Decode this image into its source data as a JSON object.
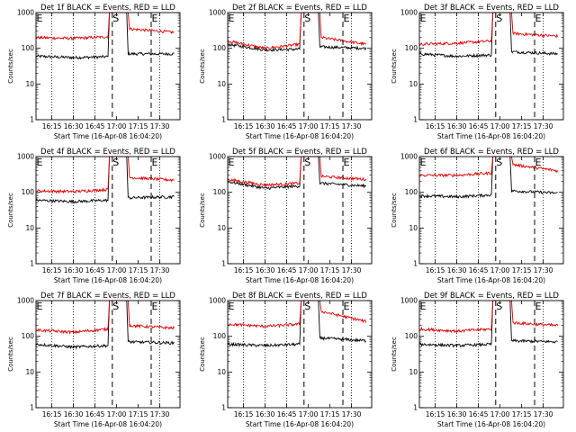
{
  "chart_data": [
    {
      "type": "line",
      "title": "Det 1f BLACK = Events, RED = LLD",
      "xlabel": "Start Time (16-Apr-08 16:04:20)",
      "ylabel": "Counts/sec",
      "y_scale": "log",
      "ylim": [
        1,
        1000
      ],
      "x_ticks": [
        "16:15",
        "16:30",
        "16:45",
        "17:00",
        "17:15",
        "17:30"
      ],
      "y_ticks": [
        "1",
        "10",
        "100",
        "1000"
      ],
      "markers": [
        {
          "label": "E",
          "time": "16:04"
        },
        {
          "label": "S",
          "time": "16:57"
        },
        {
          "label": "E",
          "time": "17:24"
        }
      ],
      "series": [
        {
          "color": "black",
          "points": [
            [
              "16:04",
              60
            ],
            [
              "16:30",
              55
            ],
            [
              "16:54",
              58
            ],
            [
              "16:55",
              1000
            ],
            [
              "17:07",
              1000
            ],
            [
              "17:08",
              70
            ],
            [
              "17:40",
              70
            ]
          ]
        },
        {
          "color": "red",
          "points": [
            [
              "16:04",
              200
            ],
            [
              "16:30",
              190
            ],
            [
              "16:54",
              210
            ],
            [
              "16:55",
              1000
            ],
            [
              "17:08",
              1000
            ],
            [
              "17:09",
              350
            ],
            [
              "17:40",
              280
            ]
          ]
        }
      ]
    },
    {
      "type": "line",
      "title": "Det 2f BLACK = Events, RED = LLD",
      "xlabel": "Start Time (16-Apr-08 16:04:20)",
      "ylabel": "Counts/sec",
      "y_scale": "log",
      "ylim": [
        1,
        1000
      ],
      "x_ticks": [
        "16:15",
        "16:30",
        "16:45",
        "17:00",
        "17:15",
        "17:30"
      ],
      "y_ticks": [
        "1",
        "10",
        "100",
        "1000"
      ],
      "markers": [
        {
          "label": "E",
          "time": "16:04"
        },
        {
          "label": "S",
          "time": "16:57"
        },
        {
          "label": "E",
          "time": "17:24"
        }
      ],
      "series": [
        {
          "color": "black",
          "points": [
            [
              "16:04",
              130
            ],
            [
              "16:30",
              90
            ],
            [
              "16:54",
              95
            ],
            [
              "16:55",
              1000
            ],
            [
              "17:07",
              1000
            ],
            [
              "17:08",
              110
            ],
            [
              "17:40",
              100
            ]
          ]
        },
        {
          "color": "red",
          "points": [
            [
              "16:04",
              160
            ],
            [
              "16:30",
              100
            ],
            [
              "16:54",
              130
            ],
            [
              "16:55",
              1000
            ],
            [
              "17:08",
              1000
            ],
            [
              "17:09",
              200
            ],
            [
              "17:40",
              130
            ]
          ]
        }
      ]
    },
    {
      "type": "line",
      "title": "Det 3f BLACK = Events, RED = LLD",
      "xlabel": "Start Time (16-Apr-08 16:04:20)",
      "ylabel": "Counts/sec",
      "y_scale": "log",
      "ylim": [
        1,
        1000
      ],
      "x_ticks": [
        "16:15",
        "16:30",
        "16:45",
        "17:00",
        "17:15",
        "17:30"
      ],
      "y_ticks": [
        "1",
        "10",
        "100",
        "1000"
      ],
      "markers": [
        {
          "label": "E",
          "time": "16:04"
        },
        {
          "label": "S",
          "time": "16:57"
        },
        {
          "label": "E",
          "time": "17:24"
        }
      ],
      "series": [
        {
          "color": "black",
          "points": [
            [
              "16:04",
              70
            ],
            [
              "16:30",
              60
            ],
            [
              "16:54",
              65
            ],
            [
              "16:55",
              1000
            ],
            [
              "17:07",
              1000
            ],
            [
              "17:08",
              80
            ],
            [
              "17:40",
              70
            ]
          ]
        },
        {
          "color": "red",
          "points": [
            [
              "16:04",
              130
            ],
            [
              "16:30",
              140
            ],
            [
              "16:54",
              160
            ],
            [
              "16:55",
              1000
            ],
            [
              "17:08",
              1000
            ],
            [
              "17:09",
              260
            ],
            [
              "17:40",
              220
            ]
          ]
        }
      ]
    },
    {
      "type": "line",
      "title": "Det 4f BLACK = Events, RED = LLD",
      "xlabel": "Start Time (16-Apr-08 16:04:20)",
      "ylabel": "Counts/sec",
      "y_scale": "log",
      "ylim": [
        1,
        1000
      ],
      "x_ticks": [
        "16:15",
        "16:30",
        "16:45",
        "17:00",
        "17:15",
        "17:30"
      ],
      "y_ticks": [
        "1",
        "10",
        "100",
        "1000"
      ],
      "markers": [
        {
          "label": "E",
          "time": "16:04"
        },
        {
          "label": "S",
          "time": "16:57"
        },
        {
          "label": "E",
          "time": "17:24"
        }
      ],
      "series": [
        {
          "color": "black",
          "points": [
            [
              "16:04",
              60
            ],
            [
              "16:30",
              55
            ],
            [
              "16:54",
              60
            ],
            [
              "16:55",
              1000
            ],
            [
              "17:07",
              1000
            ],
            [
              "17:08",
              70
            ],
            [
              "17:40",
              75
            ]
          ]
        },
        {
          "color": "red",
          "points": [
            [
              "16:04",
              110
            ],
            [
              "16:30",
              105
            ],
            [
              "16:54",
              120
            ],
            [
              "16:55",
              1000
            ],
            [
              "17:08",
              1000
            ],
            [
              "17:09",
              260
            ],
            [
              "17:40",
              220
            ]
          ]
        }
      ]
    },
    {
      "type": "line",
      "title": "Det 5f BLACK = Events, RED = LLD",
      "xlabel": "Start Time (16-Apr-08 16:04:20)",
      "ylabel": "Counts/sec",
      "y_scale": "log",
      "ylim": [
        1,
        1000
      ],
      "x_ticks": [
        "16:15",
        "16:30",
        "16:45",
        "17:00",
        "17:15",
        "17:30"
      ],
      "y_ticks": [
        "1",
        "10",
        "100",
        "1000"
      ],
      "markers": [
        {
          "label": "E",
          "time": "16:04"
        },
        {
          "label": "S",
          "time": "16:57"
        },
        {
          "label": "E",
          "time": "17:24"
        }
      ],
      "series": [
        {
          "color": "black",
          "points": [
            [
              "16:04",
              200
            ],
            [
              "16:30",
              130
            ],
            [
              "16:54",
              150
            ],
            [
              "16:55",
              1000
            ],
            [
              "17:07",
              1000
            ],
            [
              "17:08",
              180
            ],
            [
              "17:40",
              150
            ]
          ]
        },
        {
          "color": "red",
          "points": [
            [
              "16:04",
              230
            ],
            [
              "16:30",
              160
            ],
            [
              "16:54",
              180
            ],
            [
              "16:55",
              1000
            ],
            [
              "17:08",
              1000
            ],
            [
              "17:09",
              280
            ],
            [
              "17:40",
              230
            ]
          ]
        }
      ]
    },
    {
      "type": "line",
      "title": "Det 6f BLACK = Events, RED = LLD",
      "xlabel": "Start Time (16-Apr-08 16:04:20)",
      "ylabel": "Counts/sec",
      "y_scale": "log",
      "ylim": [
        1,
        1000
      ],
      "x_ticks": [
        "16:15",
        "16:30",
        "16:45",
        "17:00",
        "17:15",
        "17:30"
      ],
      "y_ticks": [
        "1",
        "10",
        "100",
        "1000"
      ],
      "markers": [
        {
          "label": "E",
          "time": "16:04"
        },
        {
          "label": "S",
          "time": "16:57"
        },
        {
          "label": "E",
          "time": "17:24"
        }
      ],
      "series": [
        {
          "color": "black",
          "points": [
            [
              "16:04",
              80
            ],
            [
              "16:30",
              75
            ],
            [
              "16:54",
              85
            ],
            [
              "16:55",
              1000
            ],
            [
              "17:07",
              1000
            ],
            [
              "17:08",
              110
            ],
            [
              "17:40",
              95
            ]
          ]
        },
        {
          "color": "red",
          "points": [
            [
              "16:04",
              300
            ],
            [
              "16:30",
              300
            ],
            [
              "16:54",
              350
            ],
            [
              "16:55",
              1000
            ],
            [
              "17:08",
              1000
            ],
            [
              "17:09",
              600
            ],
            [
              "17:40",
              400
            ]
          ]
        }
      ]
    },
    {
      "type": "line",
      "title": "Det 7f BLACK = Events, RED = LLD",
      "xlabel": "Start Time (16-Apr-08 16:04:20)",
      "ylabel": "Counts/sec",
      "y_scale": "log",
      "ylim": [
        1,
        1000
      ],
      "x_ticks": [
        "16:15",
        "16:30",
        "16:45",
        "17:00",
        "17:15",
        "17:30"
      ],
      "y_ticks": [
        "1",
        "10",
        "100",
        "1000"
      ],
      "markers": [
        {
          "label": "E",
          "time": "16:04"
        },
        {
          "label": "S",
          "time": "16:57"
        },
        {
          "label": "E",
          "time": "17:24"
        }
      ],
      "series": [
        {
          "color": "black",
          "points": [
            [
              "16:04",
              60
            ],
            [
              "16:30",
              50
            ],
            [
              "16:54",
              55
            ],
            [
              "16:55",
              1000
            ],
            [
              "17:07",
              1000
            ],
            [
              "17:08",
              70
            ],
            [
              "17:40",
              65
            ]
          ]
        },
        {
          "color": "red",
          "points": [
            [
              "16:04",
              150
            ],
            [
              "16:30",
              130
            ],
            [
              "16:54",
              160
            ],
            [
              "16:55",
              1000
            ],
            [
              "17:08",
              1000
            ],
            [
              "17:09",
              200
            ],
            [
              "17:40",
              170
            ]
          ]
        }
      ]
    },
    {
      "type": "line",
      "title": "Det 8f BLACK = Events, RED = LLD",
      "xlabel": "Start Time (16-Apr-08 16:04:20)",
      "ylabel": "Counts/sec",
      "y_scale": "log",
      "ylim": [
        1,
        1000
      ],
      "x_ticks": [
        "16:15",
        "16:30",
        "16:45",
        "17:00",
        "17:15",
        "17:30"
      ],
      "y_ticks": [
        "1",
        "10",
        "100",
        "1000"
      ],
      "markers": [
        {
          "label": "E",
          "time": "16:04"
        },
        {
          "label": "S",
          "time": "16:57"
        },
        {
          "label": "E",
          "time": "17:24"
        }
      ],
      "series": [
        {
          "color": "black",
          "points": [
            [
              "16:04",
              60
            ],
            [
              "16:30",
              55
            ],
            [
              "16:54",
              60
            ],
            [
              "16:55",
              1000
            ],
            [
              "17:07",
              1000
            ],
            [
              "17:08",
              90
            ],
            [
              "17:40",
              75
            ]
          ]
        },
        {
          "color": "red",
          "points": [
            [
              "16:04",
              220
            ],
            [
              "16:30",
              190
            ],
            [
              "16:54",
              220
            ],
            [
              "16:55",
              1000
            ],
            [
              "17:08",
              1000
            ],
            [
              "17:09",
              500
            ],
            [
              "17:40",
              260
            ]
          ]
        }
      ]
    },
    {
      "type": "line",
      "title": "Det 9f BLACK = Events, RED = LLD",
      "xlabel": "Start Time (16-Apr-08 16:04:20)",
      "ylabel": "Counts/sec",
      "y_scale": "log",
      "ylim": [
        1,
        1000
      ],
      "x_ticks": [
        "16:15",
        "16:30",
        "16:45",
        "17:00",
        "17:15",
        "17:30"
      ],
      "y_ticks": [
        "1",
        "10",
        "100",
        "1000"
      ],
      "markers": [
        {
          "label": "E",
          "time": "16:04"
        },
        {
          "label": "S",
          "time": "16:57"
        },
        {
          "label": "E",
          "time": "17:24"
        }
      ],
      "series": [
        {
          "color": "black",
          "points": [
            [
              "16:04",
              60
            ],
            [
              "16:30",
              55
            ],
            [
              "16:54",
              60
            ],
            [
              "16:55",
              1000
            ],
            [
              "17:07",
              1000
            ],
            [
              "17:08",
              75
            ],
            [
              "17:40",
              70
            ]
          ]
        },
        {
          "color": "red",
          "points": [
            [
              "16:04",
              160
            ],
            [
              "16:30",
              140
            ],
            [
              "16:54",
              160
            ],
            [
              "16:55",
              1000
            ],
            [
              "17:08",
              1000
            ],
            [
              "17:09",
              240
            ],
            [
              "17:40",
              200
            ]
          ]
        }
      ]
    }
  ]
}
